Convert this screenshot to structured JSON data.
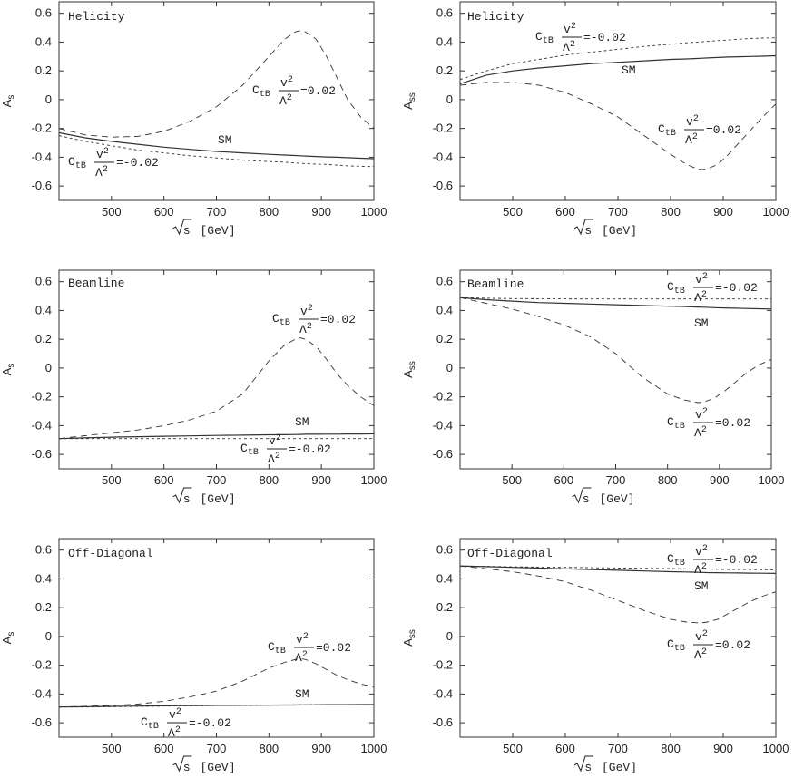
{
  "chart_data": [
    {
      "type": "line",
      "panel_label": "Helicity",
      "ylabel_base": "A",
      "ylabel_sub": "s",
      "xlabel_main": "s",
      "xlabel_unit": "[GeV]",
      "xlim": [
        400,
        1000
      ],
      "ylim": [
        -0.7,
        0.68
      ],
      "xticks": [
        "500",
        "600",
        "700",
        "800",
        "900",
        "1000"
      ],
      "yticks": [
        "0.6",
        "0.4",
        "0.2",
        "0",
        "-0.2",
        "-0.4",
        "-0.6"
      ],
      "x": [
        400,
        450,
        500,
        550,
        600,
        650,
        700,
        750,
        800,
        830,
        850,
        860,
        870,
        890,
        910,
        930,
        950,
        975,
        1000
      ],
      "series": [
        {
          "name": "SM",
          "style": "solid",
          "values": [
            -0.23,
            -0.265,
            -0.29,
            -0.31,
            -0.33,
            -0.345,
            -0.36,
            -0.37,
            -0.38,
            -0.385,
            -0.388,
            -0.39,
            -0.392,
            -0.395,
            -0.398,
            -0.4,
            -0.403,
            -0.407,
            -0.41
          ]
        },
        {
          "name": "C_tB v^2/Λ^2 = 0.02",
          "style": "longdash",
          "values": [
            -0.2,
            -0.245,
            -0.26,
            -0.255,
            -0.22,
            -0.15,
            -0.05,
            0.1,
            0.3,
            0.42,
            0.47,
            0.48,
            0.47,
            0.42,
            0.3,
            0.15,
            0.0,
            -0.12,
            -0.2
          ]
        },
        {
          "name": "C_tB v^2/Λ^2 = -0.02",
          "style": "shortdash",
          "values": [
            -0.25,
            -0.29,
            -0.32,
            -0.35,
            -0.37,
            -0.39,
            -0.405,
            -0.42,
            -0.43,
            -0.435,
            -0.44,
            -0.442,
            -0.445,
            -0.448,
            -0.45,
            -0.455,
            -0.46,
            -0.463,
            -0.465
          ]
        }
      ],
      "annotations": {
        "sm": "SM",
        "plus": "=0.02",
        "minus": "=-0.02"
      }
    },
    {
      "type": "line",
      "panel_label": "Helicity",
      "ylabel_base": "A",
      "ylabel_sub": "ss",
      "xlabel_main": "s",
      "xlabel_unit": "[GeV]",
      "xlim": [
        400,
        1000
      ],
      "ylim": [
        -0.7,
        0.68
      ],
      "xticks": [
        "500",
        "600",
        "700",
        "800",
        "900",
        "1000"
      ],
      "yticks": [
        "0.6",
        "0.4",
        "0.2",
        "0",
        "-0.2",
        "-0.4",
        "-0.6"
      ],
      "x": [
        400,
        450,
        500,
        550,
        600,
        650,
        700,
        750,
        800,
        830,
        850,
        860,
        870,
        890,
        910,
        930,
        950,
        975,
        1000
      ],
      "series": [
        {
          "name": "SM",
          "style": "solid",
          "values": [
            0.11,
            0.17,
            0.2,
            0.22,
            0.235,
            0.25,
            0.26,
            0.27,
            0.28,
            0.283,
            0.286,
            0.288,
            0.29,
            0.293,
            0.296,
            0.298,
            0.3,
            0.302,
            0.305
          ]
        },
        {
          "name": "C_tB v^2/Λ^2 = -0.02",
          "style": "shortdash",
          "values": [
            0.14,
            0.2,
            0.25,
            0.28,
            0.31,
            0.33,
            0.35,
            0.37,
            0.385,
            0.395,
            0.4,
            0.402,
            0.405,
            0.41,
            0.415,
            0.42,
            0.425,
            0.428,
            0.43
          ]
        },
        {
          "name": "C_tB v^2/Λ^2 = 0.02",
          "style": "longdash",
          "values": [
            0.1,
            0.12,
            0.12,
            0.1,
            0.05,
            -0.03,
            -0.12,
            -0.25,
            -0.38,
            -0.45,
            -0.48,
            -0.485,
            -0.48,
            -0.45,
            -0.38,
            -0.3,
            -0.22,
            -0.12,
            -0.03
          ]
        }
      ],
      "annotations": {
        "sm": "SM",
        "plus": "=0.02",
        "minus": "=-0.02"
      }
    },
    {
      "type": "line",
      "panel_label": "Beamline",
      "ylabel_base": "A",
      "ylabel_sub": "s",
      "xlabel_main": "s",
      "xlabel_unit": "[GeV]",
      "xlim": [
        400,
        1000
      ],
      "ylim": [
        -0.7,
        0.68
      ],
      "xticks": [
        "500",
        "600",
        "700",
        "800",
        "900",
        "1000"
      ],
      "yticks": [
        "0.6",
        "0.4",
        "0.2",
        "0",
        "-0.2",
        "-0.4",
        "-0.6"
      ],
      "x": [
        400,
        450,
        500,
        550,
        600,
        650,
        700,
        750,
        800,
        830,
        850,
        860,
        870,
        890,
        910,
        930,
        950,
        975,
        1000
      ],
      "series": [
        {
          "name": "SM",
          "style": "solid",
          "values": [
            -0.49,
            -0.485,
            -0.48,
            -0.477,
            -0.474,
            -0.471,
            -0.468,
            -0.466,
            -0.464,
            -0.463,
            -0.462,
            -0.461,
            -0.46,
            -0.46,
            -0.459,
            -0.459,
            -0.458,
            -0.458,
            -0.457
          ]
        },
        {
          "name": "C_tB v^2/Λ^2 = 0.02",
          "style": "longdash",
          "values": [
            -0.49,
            -0.47,
            -0.45,
            -0.43,
            -0.4,
            -0.36,
            -0.3,
            -0.18,
            0.05,
            0.16,
            0.2,
            0.21,
            0.2,
            0.15,
            0.06,
            -0.04,
            -0.12,
            -0.2,
            -0.26
          ]
        },
        {
          "name": "C_tB v^2/Λ^2 = -0.02",
          "style": "shortdash",
          "values": [
            -0.49,
            -0.49,
            -0.49,
            -0.49,
            -0.49,
            -0.49,
            -0.49,
            -0.49,
            -0.49,
            -0.49,
            -0.49,
            -0.49,
            -0.49,
            -0.49,
            -0.49,
            -0.49,
            -0.49,
            -0.49,
            -0.49
          ]
        }
      ],
      "annotations": {
        "sm": "SM",
        "plus": "=0.02",
        "minus": "=-0.02"
      }
    },
    {
      "type": "line",
      "panel_label": "Beamline",
      "ylabel_base": "A",
      "ylabel_sub": "ss",
      "xlabel_main": "s",
      "xlabel_unit": "[GeV]",
      "xlim": [
        400,
        1000
      ],
      "ylim": [
        -0.7,
        0.68
      ],
      "xticks": [
        "500",
        "600",
        "700",
        "800",
        "900",
        "1000"
      ],
      "yticks": [
        "0.6",
        "0.4",
        "0.2",
        "0",
        "-0.2",
        "-0.4",
        "-0.6"
      ],
      "x": [
        400,
        450,
        500,
        550,
        600,
        650,
        700,
        750,
        800,
        830,
        850,
        860,
        870,
        890,
        910,
        930,
        950,
        975,
        1000
      ],
      "series": [
        {
          "name": "SM",
          "style": "solid",
          "values": [
            0.49,
            0.475,
            0.465,
            0.455,
            0.45,
            0.445,
            0.44,
            0.435,
            0.43,
            0.428,
            0.425,
            0.424,
            0.423,
            0.42,
            0.418,
            0.416,
            0.414,
            0.412,
            0.41
          ]
        },
        {
          "name": "C_tB v^2/Λ^2 = -0.02",
          "style": "shortdash",
          "values": [
            0.49,
            0.485,
            0.483,
            0.482,
            0.481,
            0.48,
            0.48,
            0.48,
            0.48,
            0.48,
            0.48,
            0.48,
            0.48,
            0.48,
            0.48,
            0.48,
            0.48,
            0.48,
            0.48
          ]
        },
        {
          "name": "C_tB v^2/Λ^2 = 0.02",
          "style": "longdash",
          "values": [
            0.49,
            0.45,
            0.41,
            0.36,
            0.3,
            0.22,
            0.1,
            -0.06,
            -0.18,
            -0.22,
            -0.235,
            -0.24,
            -0.235,
            -0.21,
            -0.16,
            -0.1,
            -0.04,
            0.02,
            0.06
          ]
        }
      ],
      "annotations": {
        "sm": "SM",
        "plus": "=0.02",
        "minus": "=-0.02"
      }
    },
    {
      "type": "line",
      "panel_label": "Off-Diagonal",
      "ylabel_base": "A",
      "ylabel_sub": "s",
      "xlabel_main": "s",
      "xlabel_unit": "[GeV]",
      "xlim": [
        400,
        1000
      ],
      "ylim": [
        -0.7,
        0.68
      ],
      "xticks": [
        "500",
        "600",
        "700",
        "800",
        "900",
        "1000"
      ],
      "yticks": [
        "0.6",
        "0.4",
        "0.2",
        "0",
        "-0.2",
        "-0.4",
        "-0.6"
      ],
      "x": [
        400,
        450,
        500,
        550,
        600,
        650,
        700,
        750,
        800,
        830,
        850,
        860,
        870,
        890,
        910,
        930,
        950,
        975,
        1000
      ],
      "series": [
        {
          "name": "SM",
          "style": "solid",
          "values": [
            -0.49,
            -0.488,
            -0.486,
            -0.484,
            -0.482,
            -0.48,
            -0.479,
            -0.478,
            -0.477,
            -0.476,
            -0.476,
            -0.475,
            -0.475,
            -0.475,
            -0.474,
            -0.474,
            -0.474,
            -0.473,
            -0.473
          ]
        },
        {
          "name": "C_tB v^2/Λ^2 = 0.02",
          "style": "longdash",
          "values": [
            -0.49,
            -0.485,
            -0.48,
            -0.47,
            -0.45,
            -0.42,
            -0.38,
            -0.31,
            -0.22,
            -0.18,
            -0.16,
            -0.155,
            -0.16,
            -0.19,
            -0.23,
            -0.27,
            -0.3,
            -0.33,
            -0.35
          ]
        },
        {
          "name": "C_tB v^2/Λ^2 = -0.02",
          "style": "shortdash",
          "values": [
            -0.49,
            -0.49,
            -0.488,
            -0.486,
            -0.484,
            -0.482,
            -0.48,
            -0.478,
            -0.477,
            -0.476,
            -0.475,
            -0.475,
            -0.475,
            -0.474,
            -0.474,
            -0.474,
            -0.473,
            -0.473,
            -0.473
          ]
        }
      ],
      "annotations": {
        "sm": "SM",
        "plus": "=0.02",
        "minus": "=-0.02"
      }
    },
    {
      "type": "line",
      "panel_label": "Off-Diagonal",
      "ylabel_base": "A",
      "ylabel_sub": "ss",
      "xlabel_main": "s",
      "xlabel_unit": "[GeV]",
      "xlim": [
        400,
        1000
      ],
      "ylim": [
        -0.7,
        0.68
      ],
      "xticks": [
        "500",
        "600",
        "700",
        "800",
        "900",
        "1000"
      ],
      "yticks": [
        "0.6",
        "0.4",
        "0.2",
        "0",
        "-0.2",
        "-0.4",
        "-0.6"
      ],
      "x": [
        400,
        450,
        500,
        550,
        600,
        650,
        700,
        750,
        800,
        830,
        850,
        860,
        870,
        890,
        910,
        930,
        950,
        975,
        1000
      ],
      "series": [
        {
          "name": "SM",
          "style": "solid",
          "values": [
            0.49,
            0.485,
            0.48,
            0.475,
            0.47,
            0.465,
            0.46,
            0.455,
            0.45,
            0.448,
            0.446,
            0.445,
            0.444,
            0.443,
            0.442,
            0.441,
            0.44,
            0.439,
            0.438
          ]
        },
        {
          "name": "C_tB v^2/Λ^2 = -0.02",
          "style": "shortdash",
          "values": [
            0.49,
            0.487,
            0.484,
            0.482,
            0.48,
            0.478,
            0.476,
            0.474,
            0.472,
            0.47,
            0.469,
            0.468,
            0.468,
            0.467,
            0.466,
            0.465,
            0.465,
            0.464,
            0.463
          ]
        },
        {
          "name": "C_tB v^2/Λ^2 = 0.02",
          "style": "longdash",
          "values": [
            0.49,
            0.47,
            0.45,
            0.42,
            0.38,
            0.32,
            0.25,
            0.18,
            0.12,
            0.1,
            0.095,
            0.095,
            0.1,
            0.12,
            0.16,
            0.2,
            0.24,
            0.28,
            0.31
          ]
        }
      ],
      "annotations": {
        "sm": "SM",
        "plus": "=0.02",
        "minus": "=-0.02"
      }
    }
  ]
}
